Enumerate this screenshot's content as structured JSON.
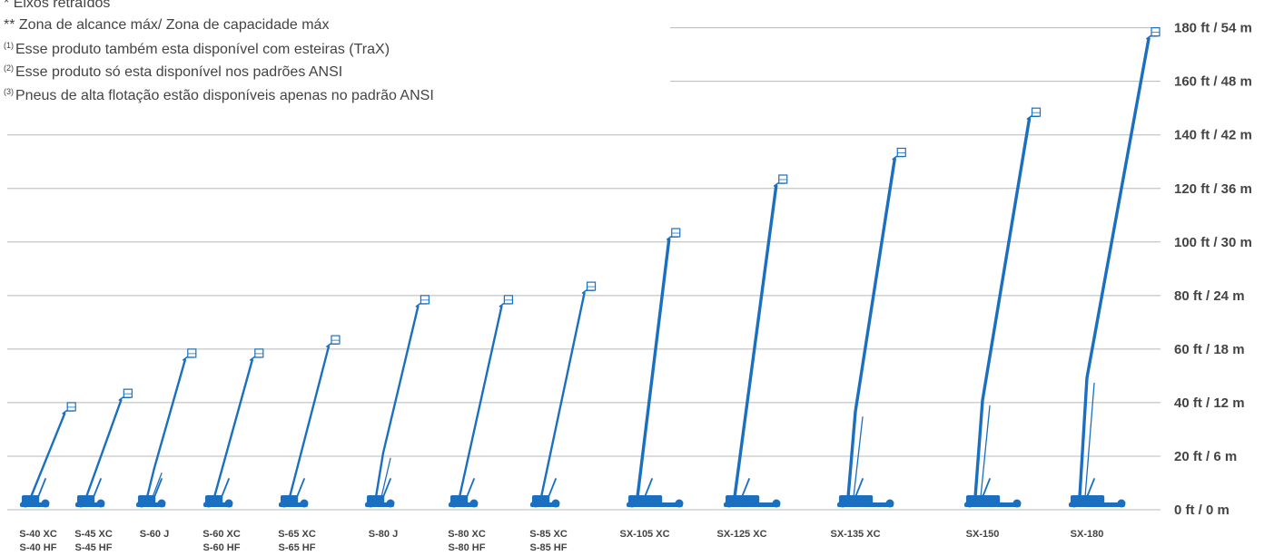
{
  "notes": [
    {
      "marker": "*",
      "text": "Eixos retraídos"
    },
    {
      "marker": "**",
      "text": "Zona de alcance máx/ Zona de capacidade máx"
    },
    {
      "marker": "(1)",
      "text": "Esse produto também esta disponível com esteiras (TraX)"
    },
    {
      "marker": "(2)",
      "text": "Esse produto só esta disponível nos padrões ANSI"
    },
    {
      "marker": "(3)",
      "text": "Pneus de alta flotação estão disponíveis apenas no padrão ANSI"
    }
  ],
  "height_scale": {
    "unit_pair": "ft / m",
    "ticks": [
      {
        "ft": 0,
        "label": "0 ft / 0 m"
      },
      {
        "ft": 20,
        "label": "20 ft / 6 m"
      },
      {
        "ft": 40,
        "label": "40 ft / 12 m"
      },
      {
        "ft": 60,
        "label": "60 ft / 18 m"
      },
      {
        "ft": 80,
        "label": "80 ft / 24 m"
      },
      {
        "ft": 100,
        "label": "100 ft / 30 m"
      },
      {
        "ft": 120,
        "label": "120 ft / 36 m"
      },
      {
        "ft": 140,
        "label": "140 ft / 42 m"
      },
      {
        "ft": 160,
        "label": "160 ft / 48 m"
      },
      {
        "ft": 180,
        "label": "180 ft / 54 m"
      }
    ]
  },
  "models": [
    {
      "labels": [
        "S-40 XC",
        "S-40 HF"
      ],
      "height_ft": 40,
      "knee": false
    },
    {
      "labels": [
        "S-45 XC",
        "S-45 HF"
      ],
      "height_ft": 45,
      "knee": false
    },
    {
      "labels": [
        "S-60 J"
      ],
      "height_ft": 60,
      "knee": true
    },
    {
      "labels": [
        "S-60 XC",
        "S-60 HF"
      ],
      "height_ft": 60,
      "knee": false
    },
    {
      "labels": [
        "S-65 XC",
        "S-65 HF"
      ],
      "height_ft": 65,
      "knee": false
    },
    {
      "labels": [
        "S-80 J"
      ],
      "height_ft": 80,
      "knee": true
    },
    {
      "labels": [
        "S-80 XC",
        "S-80 HF"
      ],
      "height_ft": 80,
      "knee": false
    },
    {
      "labels": [
        "S-85 XC",
        "S-85 HF"
      ],
      "height_ft": 85,
      "knee": false
    },
    {
      "labels": [
        "SX-105 XC"
      ],
      "height_ft": 105,
      "knee": false
    },
    {
      "labels": [
        "SX-125 XC"
      ],
      "height_ft": 125,
      "knee": false
    },
    {
      "labels": [
        "SX-135 XC"
      ],
      "height_ft": 135,
      "knee": true
    },
    {
      "labels": [
        "SX-150"
      ],
      "height_ft": 150,
      "knee": true
    },
    {
      "labels": [
        "SX-180"
      ],
      "height_ft": 180,
      "knee": true
    }
  ],
  "colors": {
    "lift": "#1a6fc0",
    "grid": "#b8b8b8",
    "text": "#444444"
  }
}
